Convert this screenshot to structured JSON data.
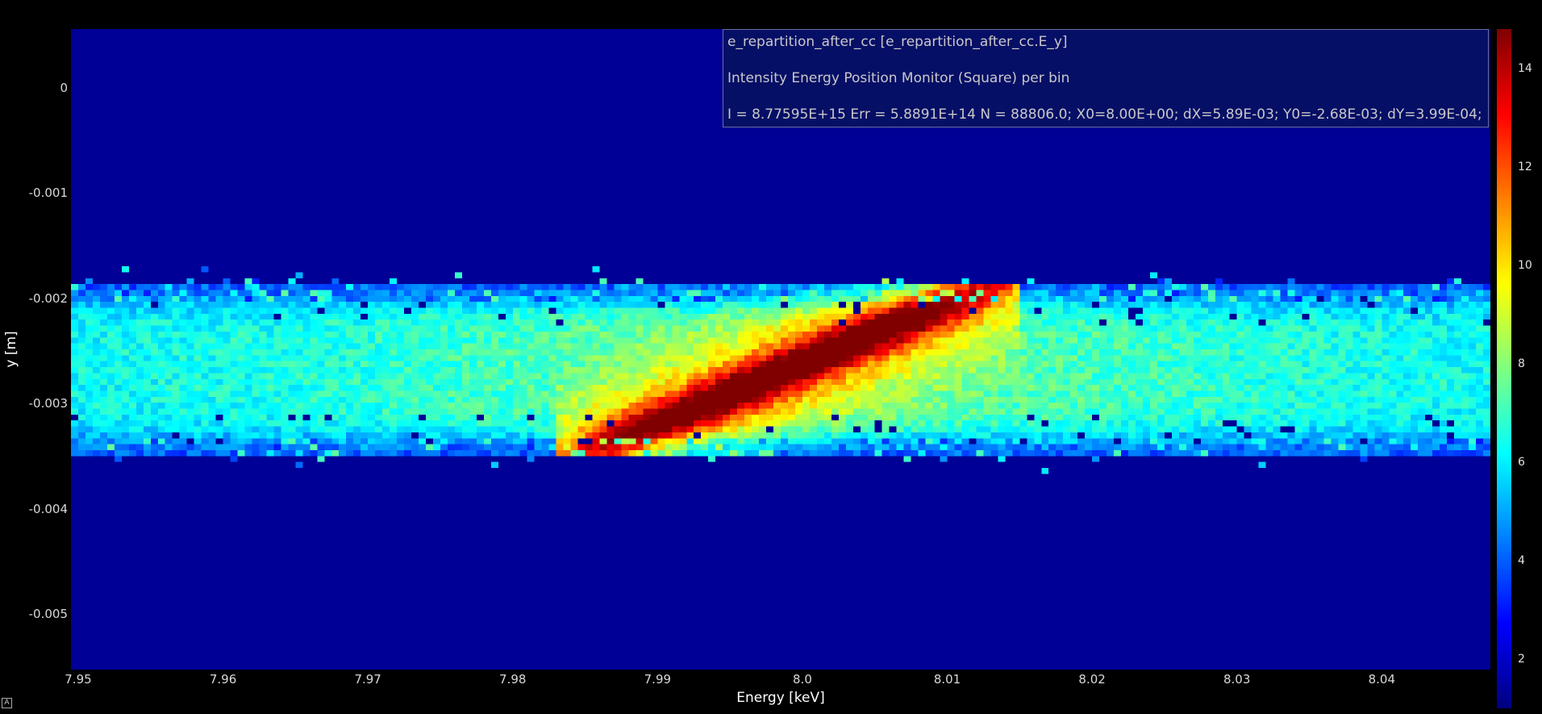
{
  "chart_data": {
    "type": "heatmap",
    "title_lines": [
      "e_repartition_after_cc [e_repartition_after_cc.E_y]",
      "Intensity Energy Position Monitor (Square) per bin",
      "I = 8.77595E+15 Err = 5.8891E+14 N = 88806.0; X0=8.00E+00; dX=5.89E-03; Y0=-2.68E-03; dY=3.99E-04;"
    ],
    "xlabel": "Energy [keV]",
    "ylabel": "y [m]",
    "xlim": [
      7.9495,
      8.0475
    ],
    "ylim": [
      -0.00553,
      0.00056
    ],
    "x_ticks": [
      "7.95",
      "7.96",
      "7.97",
      "7.98",
      "7.99",
      "8.0",
      "8.01",
      "8.02",
      "8.03",
      "8.04"
    ],
    "x_tick_values": [
      7.95,
      7.96,
      7.97,
      7.98,
      7.99,
      8.0,
      8.01,
      8.02,
      8.03,
      8.04
    ],
    "y_ticks": [
      "0",
      "-0.001",
      "-0.002",
      "-0.003",
      "-0.004",
      "-0.005"
    ],
    "y_tick_values": [
      0,
      -0.001,
      -0.002,
      -0.003,
      -0.004,
      -0.005
    ],
    "colorbar": {
      "range": [
        1,
        14.8
      ],
      "ticks": [
        "2",
        "4",
        "6",
        "8",
        "10",
        "12",
        "14"
      ],
      "tick_values": [
        2,
        4,
        6,
        8,
        10,
        12,
        14
      ],
      "colormap": "jet"
    },
    "features": {
      "band_center_y": -0.00268,
      "band_halfwidth_y": 0.0007,
      "ridge": {
        "x": [
          7.985,
          8.014
        ],
        "y": [
          -0.0035,
          -0.0018
        ],
        "peak_value": 14.5
      },
      "background_value": 1.3
    }
  },
  "corner_badge": "A"
}
